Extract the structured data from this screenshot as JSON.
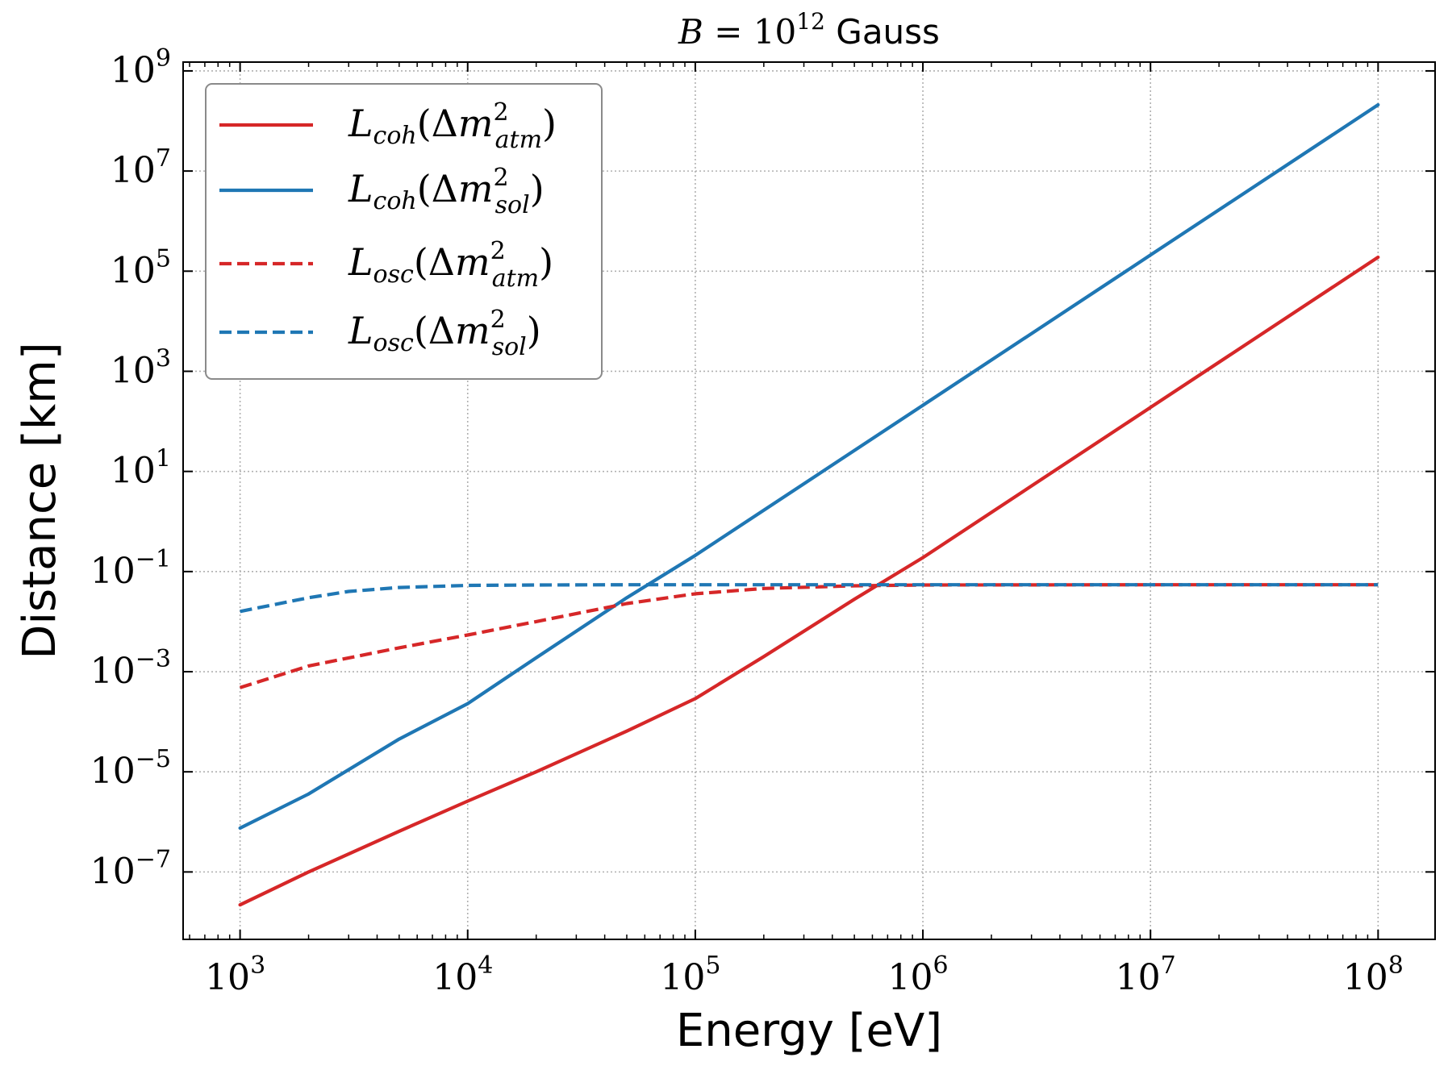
{
  "chart_data": {
    "type": "line",
    "title": {
      "math_var": "B",
      "eq": " = ",
      "base": "10",
      "exp": "12",
      "unit": " Gauss"
    },
    "xlabel": "Energy [eV]",
    "ylabel": "Distance [km]",
    "xscale": "log",
    "yscale": "log",
    "xlim": [
      562,
      178000000
    ],
    "ylim": [
      4.5e-09,
      1500000000.0
    ],
    "xticks": [
      {
        "value": 1000,
        "base": "10",
        "exp": "3"
      },
      {
        "value": 10000,
        "base": "10",
        "exp": "4"
      },
      {
        "value": 100000,
        "base": "10",
        "exp": "5"
      },
      {
        "value": 1000000,
        "base": "10",
        "exp": "6"
      },
      {
        "value": 10000000,
        "base": "10",
        "exp": "7"
      },
      {
        "value": 100000000,
        "base": "10",
        "exp": "8"
      }
    ],
    "yticks": [
      {
        "value": 1e-07,
        "base": "10",
        "exp": "−7"
      },
      {
        "value": 1e-05,
        "base": "10",
        "exp": "−5"
      },
      {
        "value": 0.001,
        "base": "10",
        "exp": "−3"
      },
      {
        "value": 0.1,
        "base": "10",
        "exp": "−1"
      },
      {
        "value": 10,
        "base": "10",
        "exp": "1"
      },
      {
        "value": 1000,
        "base": "10",
        "exp": "3"
      },
      {
        "value": 100000,
        "base": "10",
        "exp": "5"
      },
      {
        "value": 10000000,
        "base": "10",
        "exp": "7"
      },
      {
        "value": 1000000000,
        "base": "10",
        "exp": "9"
      }
    ],
    "grid": true,
    "legend_position": "top-left",
    "series": [
      {
        "name": "L_coh(Δm²_atm)",
        "label": {
          "L": "L",
          "sub": "coh",
          "open": "(Δ",
          "m": "m",
          "sup": "2",
          "sub2": "atm",
          "close": ")"
        },
        "color": "#d62728",
        "style": "solid",
        "x": [
          1000,
          2000,
          5000,
          10000,
          20000,
          50000,
          100000,
          200000,
          500000,
          1000000,
          10000000,
          100000000
        ],
        "y": [
          2.2e-08,
          1e-07,
          6.5e-07,
          2.6e-06,
          1e-05,
          6.5e-05,
          0.00029,
          0.002,
          0.028,
          0.19,
          190.0,
          190000.0
        ]
      },
      {
        "name": "L_coh(Δm²_sol)",
        "label": {
          "L": "L",
          "sub": "coh",
          "open": "(Δ",
          "m": "m",
          "sup": "2",
          "sub2": "sol",
          "close": ")"
        },
        "color": "#1f77b4",
        "style": "solid",
        "x": [
          1000,
          2000,
          5000,
          10000,
          20000,
          50000,
          100000,
          1000000,
          10000000,
          100000000
        ],
        "y": [
          7.5e-07,
          3.6e-06,
          4.5e-05,
          0.00023,
          0.0019,
          0.03,
          0.21,
          210.0,
          210000.0,
          210000000.0
        ]
      },
      {
        "name": "L_osc(Δm²_atm)",
        "label": {
          "L": "L",
          "sub": "osc",
          "open": "(Δ",
          "m": "m",
          "sup": "2",
          "sub2": "atm",
          "close": ")"
        },
        "color": "#d62728",
        "style": "dashed",
        "x": [
          1000,
          2000,
          5000,
          10000,
          20000,
          50000,
          100000,
          200000,
          500000,
          1000000,
          10000000,
          100000000
        ],
        "y": [
          0.00048,
          0.0013,
          0.003,
          0.0054,
          0.01,
          0.023,
          0.036,
          0.046,
          0.052,
          0.054,
          0.0545,
          0.0545
        ]
      },
      {
        "name": "L_osc(Δm²_sol)",
        "label": {
          "L": "L",
          "sub": "osc",
          "open": "(Δ",
          "m": "m",
          "sup": "2",
          "sub2": "sol",
          "close": ")"
        },
        "color": "#1f77b4",
        "style": "dashed",
        "x": [
          1000,
          2000,
          3000,
          5000,
          10000,
          20000,
          50000,
          100000,
          1000000,
          10000000,
          100000000
        ],
        "y": [
          0.016,
          0.03,
          0.04,
          0.048,
          0.053,
          0.054,
          0.0545,
          0.0545,
          0.0545,
          0.0545,
          0.0545
        ]
      }
    ]
  }
}
